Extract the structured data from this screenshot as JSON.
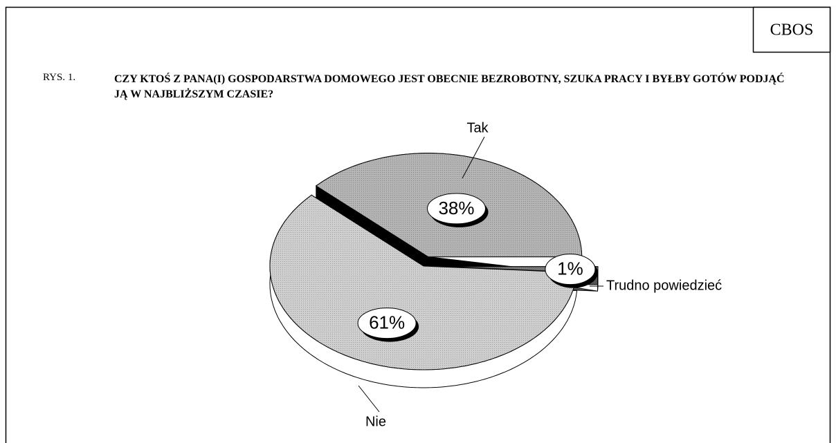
{
  "header": "CBOS",
  "chart_data": {
    "type": "pie",
    "figure_label": "RYS. 1.",
    "title": "CZY KTOŚ Z PANA(I) GOSPODARSTWA DOMOWEGO JEST OBECNIE BEZROBOTNY, SZUKA PRACY I BYŁBY GOTÓW PODJĄĆ JĄ W NAJBLIŻSZYM CZASIE?",
    "categories": [
      "Tak",
      "Nie",
      "Trudno powiedzieć"
    ],
    "values": [
      38,
      61,
      1
    ],
    "value_labels": [
      "38%",
      "61%",
      "1%"
    ],
    "colors": [
      "#b4b4b4",
      "#cfcfcf",
      "#7a7a7a"
    ]
  }
}
